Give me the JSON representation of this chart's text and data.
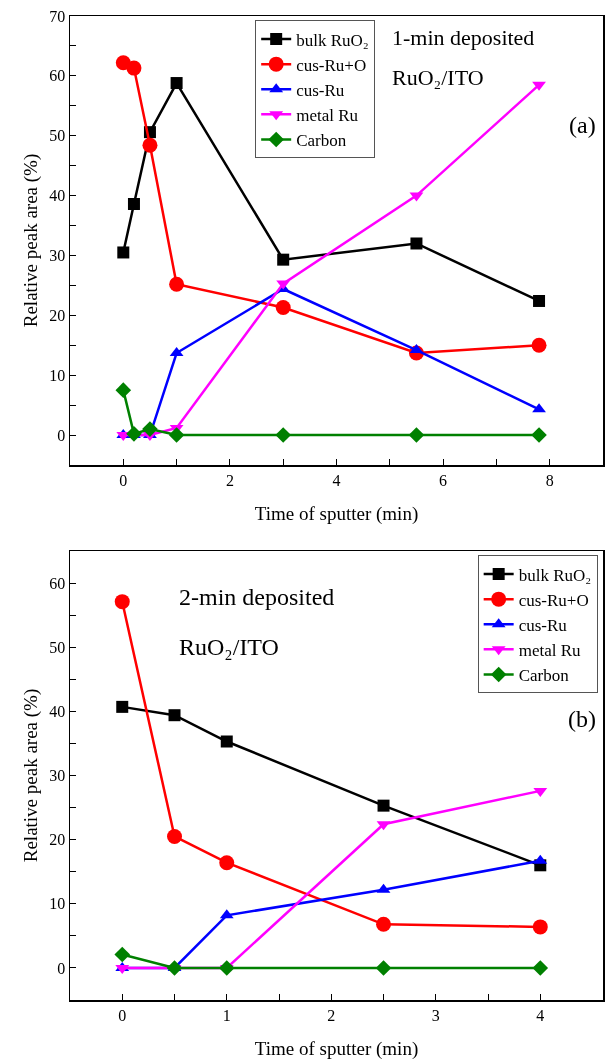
{
  "chart_data": [
    {
      "type": "line",
      "xlabel": "Time of sputter (min)",
      "ylabel": "Relative peak area (%)",
      "annotations": [
        "1-min deposited",
        "RuO₂/ITO",
        "(a)"
      ],
      "x": [
        0,
        0.2,
        0.5,
        1,
        3,
        5.5,
        7.8
      ],
      "xlim": [
        -1,
        9
      ],
      "ylim": [
        -5,
        70
      ],
      "xticks": [
        0,
        {
          "value": 1,
          "label": null
        },
        2,
        {
          "value": 3,
          "label": null
        },
        4,
        {
          "value": 5,
          "label": null
        },
        6,
        {
          "value": 7,
          "label": null
        },
        8
      ],
      "yticks": [
        0,
        {
          "value": 5,
          "label": null
        },
        10,
        {
          "value": 15,
          "label": null
        },
        20,
        {
          "value": 25,
          "label": null
        },
        30,
        {
          "value": 35,
          "label": null
        },
        40,
        {
          "value": 45,
          "label": null
        },
        50,
        {
          "value": 55,
          "label": null
        },
        60,
        {
          "value": 65,
          "label": null
        },
        70
      ],
      "grid": false,
      "legend": "top",
      "line_style": "solid",
      "series": [
        {
          "name": "bulk RuO₂",
          "color": "#000000",
          "marker": "square",
          "values": [
            30.5,
            38.6,
            50.6,
            58.8,
            29.3,
            32,
            22.4
          ]
        },
        {
          "name": "cus-Ru+O",
          "color": "#ff0000",
          "marker": "circle",
          "values": [
            62.2,
            61.3,
            48.4,
            25.2,
            21.3,
            13.7,
            15
          ]
        },
        {
          "name": "cus-Ru",
          "color": "#0000ff",
          "marker": "triangle",
          "values": [
            0,
            0,
            0,
            13.7,
            24.4,
            14.2,
            4.3
          ]
        },
        {
          "name": "metal Ru",
          "color": "#ff00ff",
          "marker": "triangle-down",
          "values": [
            0,
            0,
            0,
            1.2,
            25.3,
            40,
            58.5
          ]
        },
        {
          "name": "Carbon",
          "color": "#008000",
          "marker": "diamond",
          "values": [
            7.5,
            0.2,
            1,
            0,
            0,
            0,
            0
          ]
        }
      ]
    },
    {
      "type": "line",
      "xlabel": "Time of sputter (min)",
      "ylabel": "Relative peak area (%)",
      "annotations": [
        "2-min deposited",
        "RuO₂/ITO",
        "(b)"
      ],
      "x": [
        0,
        0.5,
        1,
        2.5,
        4
      ],
      "xlim": [
        -0.5,
        4.6
      ],
      "ylim": [
        -5,
        65
      ],
      "xticks": [
        0,
        {
          "value": 0.5,
          "label": null
        },
        1,
        {
          "value": 1.5,
          "label": null
        },
        2,
        {
          "value": 2.5,
          "label": null
        },
        3,
        {
          "value": 3.5,
          "label": null
        },
        4
      ],
      "yticks": [
        0,
        {
          "value": 5,
          "label": null
        },
        10,
        {
          "value": 15,
          "label": null
        },
        20,
        {
          "value": 25,
          "label": null
        },
        30,
        {
          "value": 35,
          "label": null
        },
        40,
        {
          "value": 45,
          "label": null
        },
        50,
        {
          "value": 55,
          "label": null
        },
        60
      ],
      "grid": false,
      "legend": "top right",
      "line_style": "solid",
      "series": [
        {
          "name": "bulk RuO₂",
          "color": "#000000",
          "marker": "square",
          "values": [
            40.7,
            39.4,
            35.3,
            25.3,
            16
          ]
        },
        {
          "name": "cus-Ru+O",
          "color": "#ff0000",
          "marker": "circle",
          "values": [
            57.1,
            20.5,
            16.4,
            6.8,
            6.4
          ]
        },
        {
          "name": "cus-Ru",
          "color": "#0000ff",
          "marker": "triangle",
          "values": [
            0,
            0,
            8.2,
            12.2,
            16.7
          ]
        },
        {
          "name": "metal Ru",
          "color": "#ff00ff",
          "marker": "triangle-down",
          "values": [
            0,
            0,
            0,
            22.4,
            27.6
          ]
        },
        {
          "name": "Carbon",
          "color": "#008000",
          "marker": "diamond",
          "values": [
            2.1,
            0,
            0,
            0,
            0
          ]
        }
      ]
    }
  ]
}
